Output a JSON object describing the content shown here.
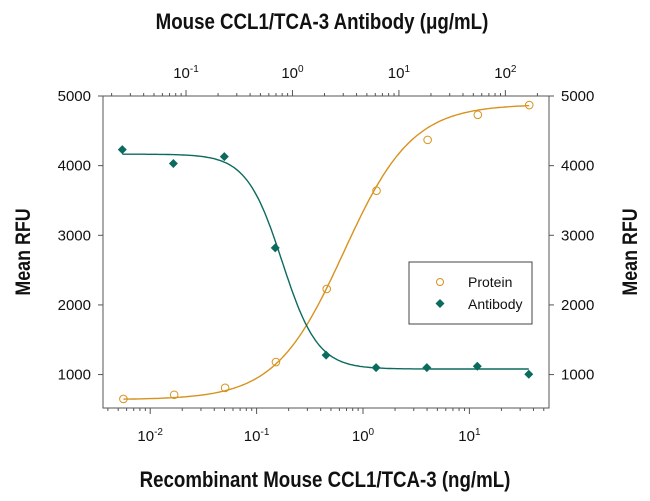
{
  "chart_data": {
    "type": "scatter",
    "title": "Mouse CCL1/TCA-3 Antibody (μg/mL)",
    "xlabel": "Recombinant Mouse CCL1/TCA-3 (ng/mL)",
    "x2label": "Mouse CCL1/TCA-3 Antibody (μg/mL)",
    "ylabel": "Mean RFU",
    "y2label": "Mean RFU",
    "xscale": "log",
    "xlim": [
      0.0036,
      56
    ],
    "x2lim": [
      0.0166,
      257
    ],
    "ylim": [
      520,
      5000
    ],
    "yticks": [
      1000,
      2000,
      3000,
      4000,
      5000
    ],
    "xticks": [
      {
        "base": "10",
        "exp": "-2",
        "value": 0.01
      },
      {
        "base": "10",
        "exp": "-1",
        "value": 0.1
      },
      {
        "base": "10",
        "exp": "0",
        "value": 1
      },
      {
        "base": "10",
        "exp": "1",
        "value": 10
      }
    ],
    "x2ticks": [
      {
        "base": "10",
        "exp": "-1",
        "value": 0.1
      },
      {
        "base": "10",
        "exp": "0",
        "value": 1
      },
      {
        "base": "10",
        "exp": "1",
        "value": 10
      },
      {
        "base": "10",
        "exp": "2",
        "value": 100
      }
    ],
    "grid": false,
    "legend_placement": "center-right",
    "series": [
      {
        "name": "Protein",
        "axis": "bottom",
        "marker": "open-circle",
        "color": "#d8921e",
        "x": [
          0.0056,
          0.0168,
          0.0506,
          0.152,
          0.456,
          1.34,
          4.05,
          12.0,
          36.5
        ],
        "y": [
          650,
          710,
          810,
          1180,
          2230,
          3640,
          4370,
          4730,
          4870
        ]
      },
      {
        "name": "Antibody",
        "axis": "top",
        "marker": "filled-diamond",
        "color": "#0c6b5f",
        "x": [
          0.0252,
          0.0761,
          0.229,
          0.689,
          2.07,
          6.1,
          18.3,
          54.5,
          166
        ],
        "y": [
          4230,
          4030,
          4130,
          2820,
          1280,
          1100,
          1100,
          1120,
          1005
        ]
      }
    ]
  }
}
